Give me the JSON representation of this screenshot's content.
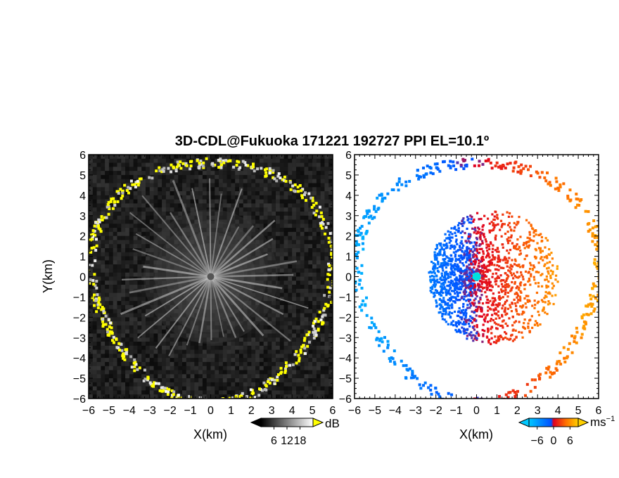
{
  "title": "3D-CDL@Fukuoka 171221 192727 PPI EL=10.1º",
  "chart_data": [
    {
      "type": "heatmap",
      "panel": "left",
      "quantity": "",
      "xlabel": "X(km)",
      "ylabel": "Y(km)",
      "xlim": [
        -6,
        6
      ],
      "ylim": [
        -6,
        6
      ],
      "xticks": [
        -6,
        -5,
        -4,
        -3,
        -2,
        -1,
        0,
        1,
        2,
        3,
        4,
        5,
        6
      ],
      "yticks": [
        -6,
        -5,
        -4,
        -3,
        -2,
        -1,
        0,
        1,
        2,
        3,
        4,
        5,
        6
      ],
      "colorbar": {
        "unit": "dB",
        "ticks": [
          6,
          12,
          18
        ],
        "colormap": "grayscale",
        "range": [
          0,
          24
        ],
        "colors": {
          "low": "#000000",
          "high": "#ffffff",
          "saturation": "#ffff00"
        }
      },
      "features": {
        "radar_center": [
          0,
          0
        ],
        "radial_spokes": 36,
        "echo_ring_radius_km": 5.9,
        "echo_ring_peak_db": 24
      }
    },
    {
      "type": "heatmap",
      "panel": "right",
      "quantity": "",
      "xlabel": "X(km)",
      "ylabel": "",
      "xlim": [
        -6,
        6
      ],
      "ylim": [
        -6,
        6
      ],
      "xticks": [
        -6,
        -5,
        -4,
        -3,
        -2,
        -1,
        0,
        1,
        2,
        3,
        4,
        5,
        6
      ],
      "yticks": [
        -6,
        -5,
        -4,
        -3,
        -2,
        -1,
        0,
        1,
        2,
        3,
        4,
        5,
        6
      ],
      "colorbar": {
        "unit": "ms",
        "unit_exponent": "−1",
        "ticks": [
          "−6",
          "0",
          "6"
        ],
        "range": [
          -9,
          9
        ],
        "colors": [
          "#00c8ff",
          "#0050ff",
          "#e00020",
          "#ff7000",
          "#ffd000"
        ]
      },
      "features": {
        "radar_center": [
          0,
          0
        ],
        "center_marker_color": "#00e0e0",
        "approaching_side": "west",
        "receding_side": "east"
      }
    }
  ]
}
